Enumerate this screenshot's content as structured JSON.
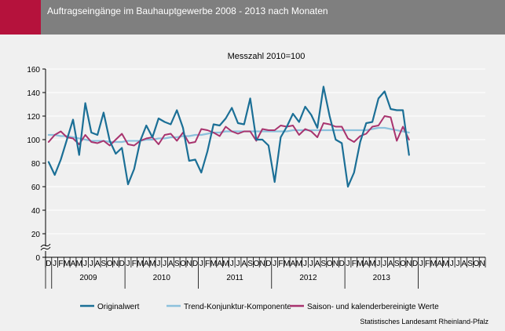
{
  "header": {
    "title": "Auftragseingänge im Bauhauptgewerbe 2008 - 2013 nach Monaten",
    "accent_color": "#b5123c",
    "bar_color": "#7f7f7f"
  },
  "source": "Statistisches Landesamt Rheinland-Pfalz",
  "chart_data": {
    "type": "line",
    "subtitle": "Messzahl 2010=100",
    "ylim": [
      0,
      160
    ],
    "y_ticks": [
      0,
      20,
      40,
      60,
      80,
      100,
      120,
      140,
      160
    ],
    "y_axis_break": true,
    "grid": "horizontal",
    "legend_position": "bottom",
    "month_labels": [
      "D",
      "J",
      "F",
      "M",
      "A",
      "M",
      "J",
      "J",
      "A",
      "S",
      "O",
      "N",
      "D",
      "J",
      "F",
      "M",
      "A",
      "M",
      "J",
      "J",
      "A",
      "S",
      "O",
      "N",
      "D",
      "J",
      "F",
      "M",
      "A",
      "M",
      "J",
      "J",
      "A",
      "S",
      "O",
      "N",
      "D",
      "J",
      "F",
      "M",
      "A",
      "M",
      "J",
      "J",
      "A",
      "S",
      "O",
      "N",
      "D",
      "J",
      "F",
      "M",
      "A",
      "M",
      "J",
      "J",
      "A",
      "S",
      "O",
      "N",
      "D",
      "J",
      "F",
      "M",
      "A",
      "M",
      "J",
      "J",
      "A",
      "S",
      "O",
      "N"
    ],
    "year_labels": [
      "2009",
      "2010",
      "2011",
      "2012",
      "2013"
    ],
    "x": [
      "2008-12",
      "2009-01",
      "2009-02",
      "2009-03",
      "2009-04",
      "2009-05",
      "2009-06",
      "2009-07",
      "2009-08",
      "2009-09",
      "2009-10",
      "2009-11",
      "2009-12",
      "2010-01",
      "2010-02",
      "2010-03",
      "2010-04",
      "2010-05",
      "2010-06",
      "2010-07",
      "2010-08",
      "2010-09",
      "2010-10",
      "2010-11",
      "2010-12",
      "2011-01",
      "2011-02",
      "2011-03",
      "2011-04",
      "2011-05",
      "2011-06",
      "2011-07",
      "2011-08",
      "2011-09",
      "2011-10",
      "2011-11",
      "2011-12",
      "2012-01",
      "2012-02",
      "2012-03",
      "2012-04",
      "2012-05",
      "2012-06",
      "2012-07",
      "2012-08",
      "2012-09",
      "2012-10",
      "2012-11",
      "2012-12",
      "2013-01",
      "2013-02",
      "2013-03",
      "2013-04",
      "2013-05",
      "2013-06",
      "2013-07",
      "2013-08",
      "2013-09",
      "2013-10",
      "2013-11"
    ],
    "series": [
      {
        "name": "Originalwert",
        "color": "#1b6f96",
        "width": 2.2,
        "values": [
          81,
          70,
          83,
          100,
          117,
          87,
          131,
          106,
          104,
          123,
          99,
          88,
          93,
          62,
          75,
          99,
          112,
          102,
          118,
          115,
          113,
          125,
          110,
          82,
          83,
          72,
          90,
          113,
          112,
          118,
          127,
          114,
          113,
          135,
          100,
          100,
          95,
          64,
          102,
          111,
          122,
          115,
          128,
          121,
          110,
          145,
          120,
          100,
          97,
          60,
          72,
          98,
          114,
          115,
          135,
          141,
          126,
          125,
          125,
          87
        ]
      },
      {
        "name": "Trend-Konjunktur-Komponente",
        "color": "#8cc1dc",
        "width": 2.2,
        "values": [
          104,
          104,
          103,
          103,
          102,
          101,
          100,
          99,
          99,
          99,
          98,
          98,
          98,
          99,
          99,
          99,
          100,
          100,
          101,
          101,
          102,
          102,
          103,
          103,
          104,
          104,
          105,
          106,
          106,
          107,
          107,
          107,
          107,
          107,
          107,
          107,
          107,
          107,
          107,
          107,
          108,
          108,
          108,
          108,
          108,
          108,
          108,
          108,
          108,
          108,
          108,
          108,
          108,
          109,
          110,
          110,
          109,
          108,
          107,
          106
        ]
      },
      {
        "name": "Saison- und kalenderbereinigte Werte",
        "color": "#a8336e",
        "width": 2.0,
        "values": [
          98,
          104,
          107,
          102,
          101,
          96,
          104,
          98,
          97,
          99,
          95,
          100,
          105,
          96,
          95,
          99,
          101,
          102,
          96,
          104,
          105,
          99,
          106,
          97,
          98,
          109,
          108,
          106,
          103,
          111,
          107,
          105,
          107,
          107,
          99,
          109,
          108,
          108,
          112,
          111,
          112,
          104,
          109,
          107,
          102,
          114,
          113,
          111,
          111,
          101,
          98,
          103,
          105,
          111,
          112,
          120,
          119,
          99,
          111,
          100
        ]
      }
    ]
  }
}
